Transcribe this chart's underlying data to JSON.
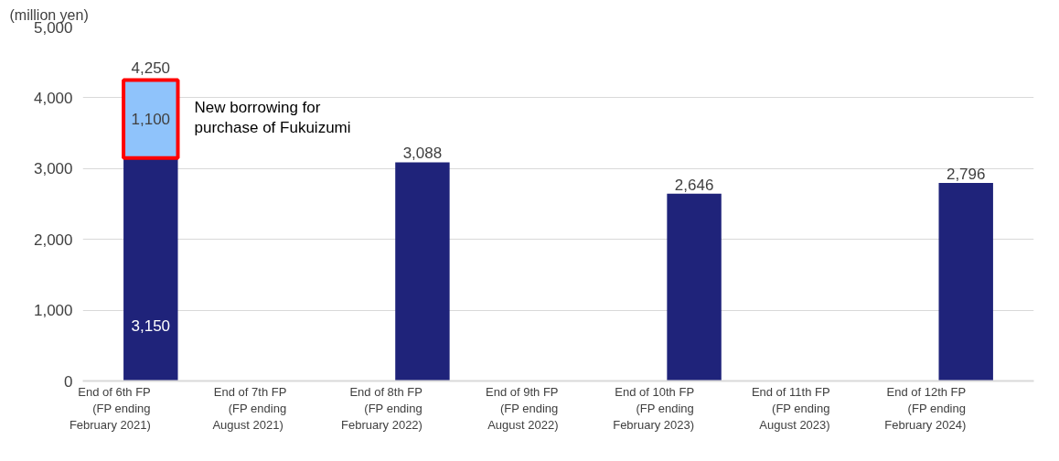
{
  "chart_data": {
    "type": "bar",
    "stacked": true,
    "ylabel": "(million yen)",
    "categories": [
      "End of 6th FP\n(FP ending\nFebruary 2021)",
      "End of 7th FP\n(FP ending\nAugust  2021)",
      "End of 8th FP\n(FP ending\nFebruary 2022)",
      "End of 9th FP\n(FP ending\nAugust 2022)",
      "End of 10th FP\n(FP ending\nFebruary 2023)",
      "End of 11th FP\n(FP ending\nAugust 2023)",
      "End of 12th FP\n(FP ending\nFebruary 2024)"
    ],
    "series": [
      {
        "color": "#1f237a",
        "values": [
          3150,
          null,
          3088,
          null,
          2646,
          null,
          2796
        ],
        "value_labels": [
          "3,150",
          null,
          "3,088",
          null,
          "2,646",
          null,
          "2,796"
        ]
      },
      {
        "color": "#8fc3fb",
        "values": [
          1100,
          null,
          null,
          null,
          null,
          null,
          null
        ],
        "value_labels": [
          "1,100",
          null,
          null,
          null,
          null,
          null,
          null
        ]
      }
    ],
    "totals": [
      "4,250",
      null,
      null,
      null,
      null,
      null,
      null
    ],
    "annotations": [
      "New borrowing for\npurchase of  Fukuizumi"
    ],
    "ylim": [
      0,
      5000
    ],
    "yticks": [
      0,
      {
        "value": 1000,
        "label": "1,000"
      },
      {
        "value": 2000,
        "label": "2,000"
      },
      {
        "value": 3000,
        "label": "3,000"
      },
      {
        "value": 4000,
        "label": "4,000"
      },
      {
        "value": 5000,
        "label": "5,000"
      }
    ],
    "grid": "y"
  }
}
